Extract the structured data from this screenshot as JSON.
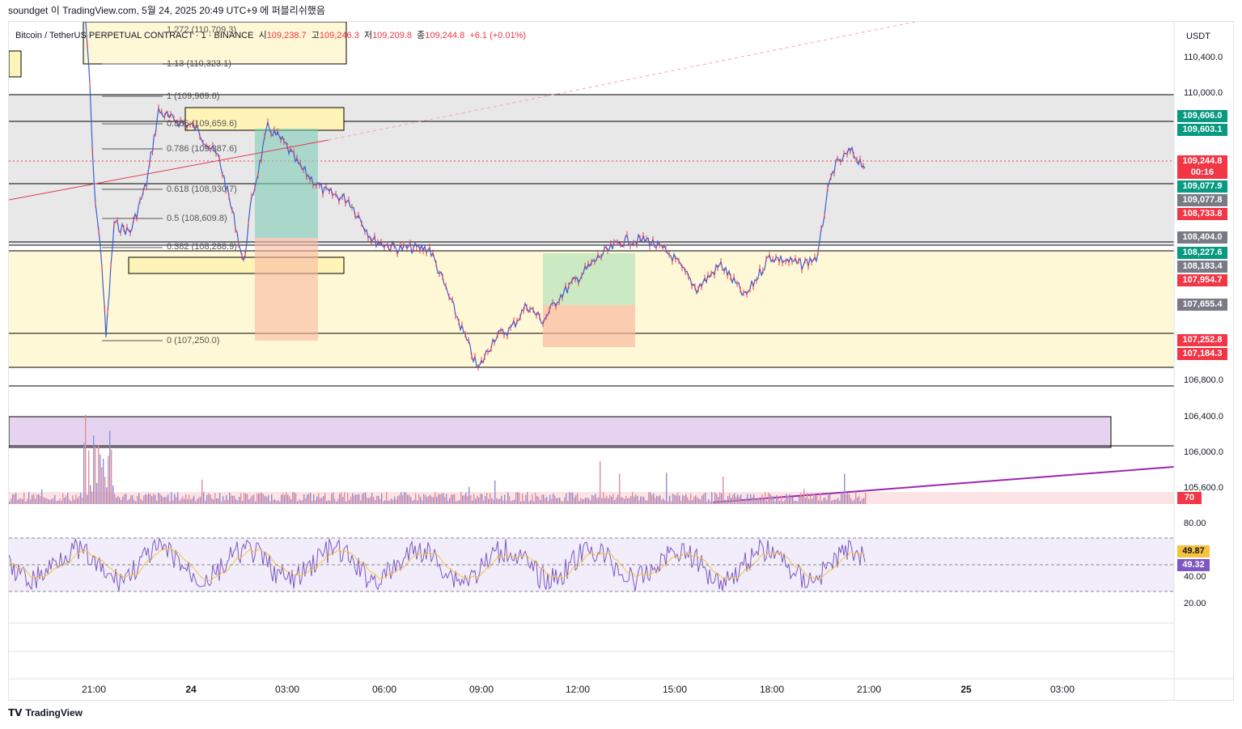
{
  "header": {
    "author_line": "soundget 이 TradingView.com, 5월 24, 2025 20:49 UTC+9 에 퍼블리쉬했음"
  },
  "symbol": {
    "name": "Bitcoin / TetherUS PERPETUAL CONTRACT · 1 · BINANCE",
    "open_label": "시",
    "open": "109,238.7",
    "high_label": "고",
    "high": "109,246.3",
    "low_label": "저",
    "low": "109,209.8",
    "close_label": "종",
    "close": "109,244.8",
    "change": "+6.1 (+0.01%)"
  },
  "price_axis": {
    "currency": "USDT",
    "ticks": [
      "110,400.0",
      "110,000.0",
      "106,800.0",
      "106,400.0",
      "106,000.0",
      "105,600.0"
    ],
    "badges": [
      {
        "text": "109,606.0",
        "color": "#089981"
      },
      {
        "text": "109,603.1",
        "color": "#089981"
      },
      {
        "text": "109,244.8",
        "color": "#f23645"
      },
      {
        "text": "00:16",
        "color": "#f23645"
      },
      {
        "text": "109,077.9",
        "color": "#089981"
      },
      {
        "text": "109,077.8",
        "color": "#787b86"
      },
      {
        "text": "108,733.8",
        "color": "#f23645"
      },
      {
        "text": "108,404.0",
        "color": "#787b86"
      },
      {
        "text": "108,227.6",
        "color": "#089981"
      },
      {
        "text": "108,183.4",
        "color": "#787b86"
      },
      {
        "text": "107,954.7",
        "color": "#f23645"
      },
      {
        "text": "107,655.4",
        "color": "#787b86"
      },
      {
        "text": "107,252.8",
        "color": "#f23645"
      },
      {
        "text": "107,184.3",
        "color": "#f23645"
      },
      {
        "text": "70",
        "color": "#f23645"
      }
    ]
  },
  "fib": [
    {
      "level": "1.272 (110,709.3)"
    },
    {
      "level": "1.13 (110,323.1)"
    },
    {
      "level": "1 (109,969.6)"
    },
    {
      "level": "0.886 (109,659.6)"
    },
    {
      "level": "0.786 (109,387.6)"
    },
    {
      "level": "0.618 (108,930.7)"
    },
    {
      "level": "0.5 (108,609.8)"
    },
    {
      "level": "0.382 (108,288.9)"
    },
    {
      "level": "0 (107,250.0)"
    }
  ],
  "rsi": {
    "ticks": [
      "80.00",
      "40.00",
      "20.00"
    ],
    "value_ma": "49.87",
    "value_rsi": "49.32",
    "ma_color": "#f7c23d",
    "rsi_color": "#7e57c2"
  },
  "time_axis": [
    "21:00",
    "24",
    "03:00",
    "06:00",
    "09:00",
    "12:00",
    "15:00",
    "18:00",
    "21:00",
    "25",
    "03:00"
  ],
  "footer": {
    "brand": "TradingView"
  }
}
